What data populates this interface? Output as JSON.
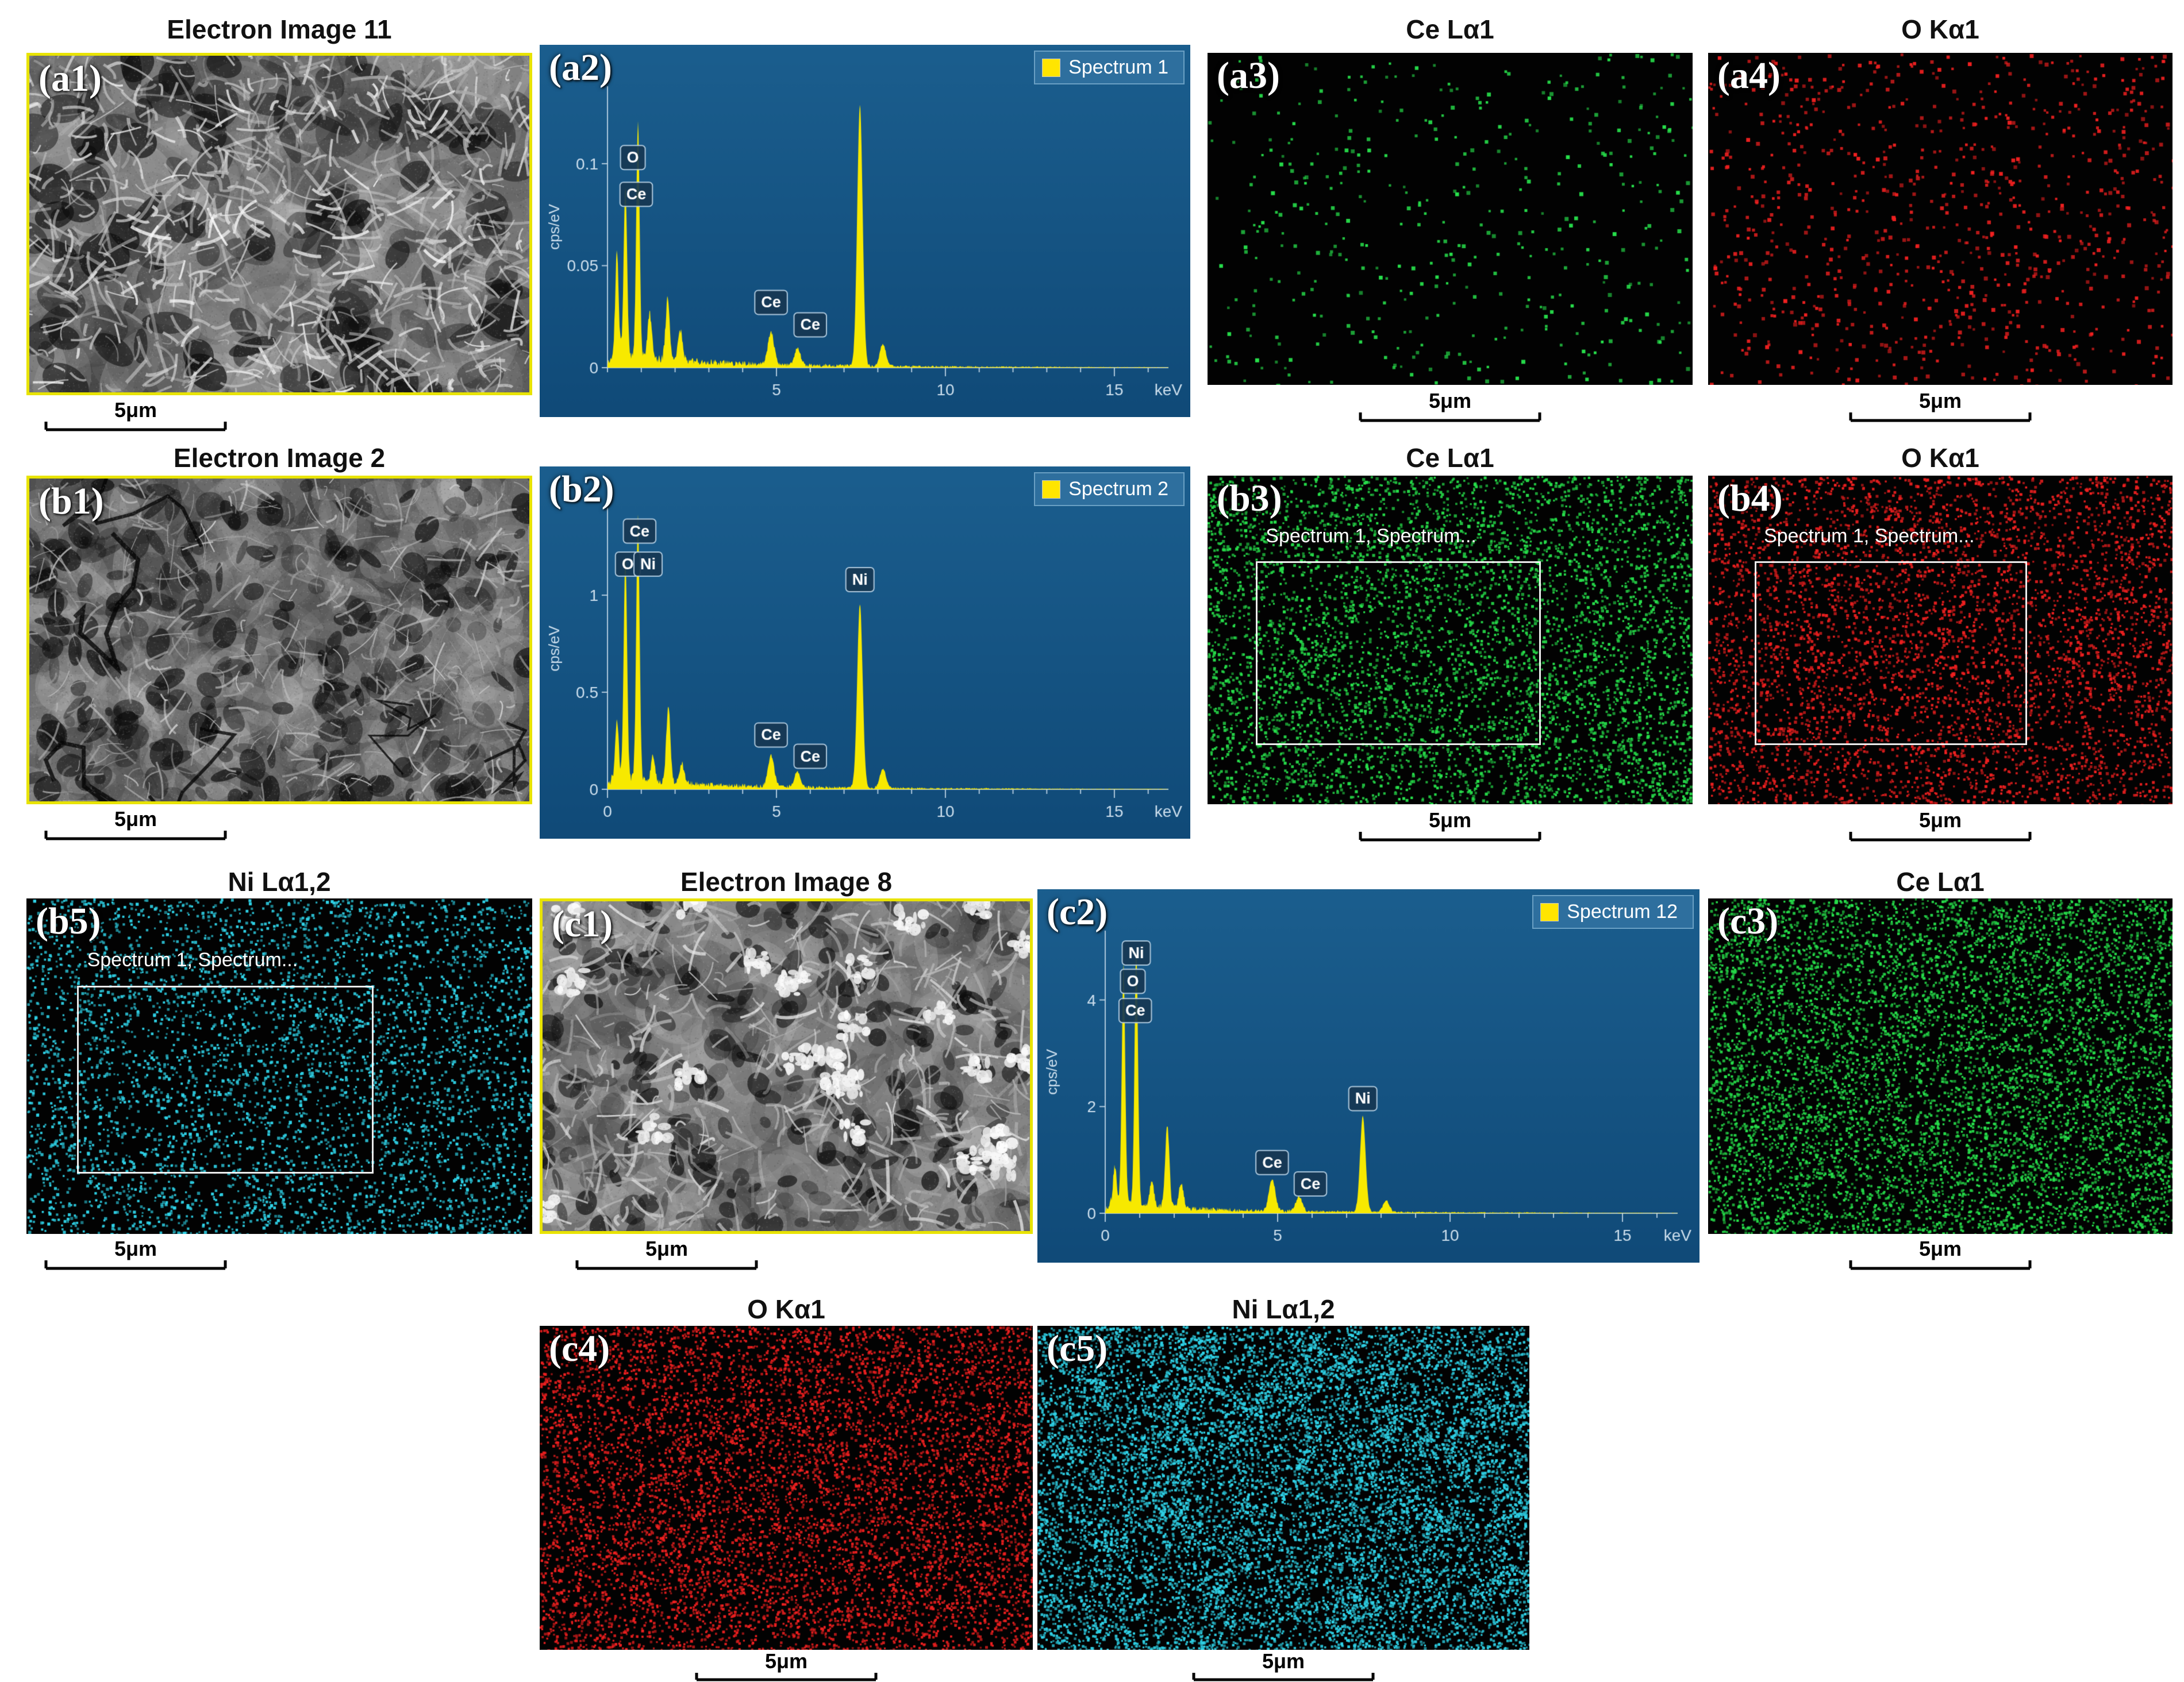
{
  "panels": {
    "a1": {
      "label": "(a1)",
      "title": "Electron Image 11",
      "scale_bar": "5μm",
      "kind": "sem"
    },
    "a2": {
      "label": "(a2)",
      "kind": "spectrum"
    },
    "a3": {
      "label": "(a3)",
      "title": "Ce Lα1",
      "scale_bar": "5μm",
      "kind": "map",
      "color": "#27e04b",
      "count": 430,
      "size": [
        4,
        7
      ]
    },
    "a4": {
      "label": "(a4)",
      "title": "O Kα1",
      "scale_bar": "5μm",
      "kind": "map",
      "color": "#ef2020",
      "count": 880,
      "size": [
        4,
        7
      ]
    },
    "b1": {
      "label": "(b1)",
      "title": "Electron Image 2",
      "scale_bar": "5μm",
      "kind": "sem"
    },
    "b2": {
      "label": "(b2)",
      "kind": "spectrum"
    },
    "b3": {
      "label": "(b3)",
      "title": "Ce Lα1",
      "scale_bar": "5μm",
      "kind": "map",
      "color": "#27e04b",
      "count": 5200,
      "size": [
        3,
        5.5
      ],
      "overlay": "Spectrum 1, Spectrum..."
    },
    "b4": {
      "label": "(b4)",
      "title": "O Kα1",
      "scale_bar": "5μm",
      "kind": "map",
      "color": "#ef2020",
      "count": 4600,
      "size": [
        3,
        5.5
      ],
      "overlay": "Spectrum 1, Spectrum..."
    },
    "b5": {
      "label": "(b5)",
      "title": "Ni Lα1,2",
      "scale_bar": "5μm",
      "kind": "map",
      "color": "#2fd3e8",
      "count": 4600,
      "size": [
        3,
        5.5
      ],
      "overlay": "Spectrum 1, Spectrum..."
    },
    "c1": {
      "label": "(c1)",
      "title": "Electron Image 8",
      "scale_bar": "5μm",
      "kind": "sem"
    },
    "c2": {
      "label": "(c2)",
      "kind": "spectrum"
    },
    "c3": {
      "label": "(c3)",
      "title": "Ce Lα1",
      "scale_bar": "5μm",
      "kind": "map",
      "color": "#27e04b",
      "count": 7600,
      "size": [
        3,
        5
      ]
    },
    "c4": {
      "label": "(c4)",
      "title": "O Kα1",
      "scale_bar": "5μm",
      "kind": "map",
      "color": "#ef2020",
      "count": 7600,
      "size": [
        3,
        5
      ]
    },
    "c5": {
      "label": "(c5)",
      "title": "Ni Lα1,2",
      "scale_bar": "5μm",
      "kind": "map",
      "color": "#2fd3e8",
      "count": 9500,
      "size": [
        3,
        5
      ],
      "clusters": 90
    }
  },
  "chart_data": [
    {
      "panel": "a2",
      "type": "area",
      "legend": "Spectrum 1",
      "series_color": "#f7e900",
      "xlabel": "keV",
      "ylabel": "cps/eV",
      "xlim": [
        0,
        16.6
      ],
      "ylim": [
        0,
        0.138
      ],
      "xticks": [
        5,
        10,
        15
      ],
      "yticks": [
        0,
        0.05,
        0.1
      ],
      "ytick_labels": [
        "0",
        "0.05",
        "0.1"
      ],
      "baseline": 0.004,
      "noise": 0.005,
      "peaks": [
        [
          0.28,
          0.05,
          0.05
        ],
        [
          0.53,
          0.085,
          0.05
        ],
        [
          0.9,
          0.115,
          0.05
        ],
        [
          1.25,
          0.022,
          0.06
        ],
        [
          1.78,
          0.03,
          0.06
        ],
        [
          2.15,
          0.015,
          0.07
        ],
        [
          4.84,
          0.016,
          0.09
        ],
        [
          5.62,
          0.008,
          0.09
        ],
        [
          7.47,
          0.128,
          0.08
        ],
        [
          8.15,
          0.011,
          0.09
        ]
      ],
      "labels": [
        {
          "t": "O",
          "x": 0.75,
          "y": 0.103
        },
        {
          "t": "Ce",
          "x": 0.85,
          "y": 0.085
        },
        {
          "t": "Ce",
          "x": 4.84,
          "y": 0.032
        },
        {
          "t": "Ce",
          "x": 6.0,
          "y": 0.021
        }
      ]
    },
    {
      "panel": "b2",
      "type": "area",
      "legend": "Spectrum 2",
      "series_color": "#f7e900",
      "xlabel": "keV",
      "ylabel": "cps/eV",
      "xlim": [
        0,
        16.6
      ],
      "ylim": [
        0,
        1.45
      ],
      "xticks": [
        0,
        5,
        10,
        15
      ],
      "yticks": [
        0,
        0.5,
        1
      ],
      "ytick_labels": [
        "0",
        "0.5",
        "1"
      ],
      "baseline": 0.04,
      "noise": 0.045,
      "peaks": [
        [
          0.28,
          0.3,
          0.05
        ],
        [
          0.53,
          1.16,
          0.05
        ],
        [
          0.9,
          1.35,
          0.05
        ],
        [
          1.35,
          0.13,
          0.06
        ],
        [
          1.8,
          0.4,
          0.06
        ],
        [
          2.2,
          0.1,
          0.07
        ],
        [
          4.84,
          0.16,
          0.09
        ],
        [
          5.62,
          0.08,
          0.09
        ],
        [
          7.47,
          0.95,
          0.08
        ],
        [
          8.15,
          0.1,
          0.09
        ]
      ],
      "labels": [
        {
          "t": "Ce",
          "x": 0.95,
          "y": 1.33
        },
        {
          "t": "O",
          "x": 0.6,
          "y": 1.16
        },
        {
          "t": "Ni",
          "x": 1.2,
          "y": 1.16
        },
        {
          "t": "Ce",
          "x": 4.84,
          "y": 0.28
        },
        {
          "t": "Ce",
          "x": 6.0,
          "y": 0.17
        },
        {
          "t": "Ni",
          "x": 7.47,
          "y": 1.08
        }
      ]
    },
    {
      "panel": "c2",
      "type": "area",
      "legend": "Spectrum 12",
      "series_color": "#f7e900",
      "xlabel": "keV",
      "ylabel": "cps/eV",
      "xlim": [
        0,
        16.6
      ],
      "ylim": [
        0,
        5.3
      ],
      "xticks": [
        0,
        5,
        10,
        15
      ],
      "yticks": [
        0,
        2,
        4
      ],
      "ytick_labels": [
        "0",
        "2",
        "4"
      ],
      "baseline": 0.13,
      "noise": 0.14,
      "peaks": [
        [
          0.28,
          0.7,
          0.05
        ],
        [
          0.53,
          4.45,
          0.05
        ],
        [
          0.9,
          4.8,
          0.05
        ],
        [
          1.35,
          0.5,
          0.06
        ],
        [
          1.8,
          1.55,
          0.06
        ],
        [
          2.2,
          0.45,
          0.07
        ],
        [
          4.84,
          0.6,
          0.09
        ],
        [
          5.62,
          0.28,
          0.09
        ],
        [
          7.47,
          1.8,
          0.08
        ],
        [
          8.15,
          0.22,
          0.09
        ]
      ],
      "labels": [
        {
          "t": "Ni",
          "x": 0.9,
          "y": 4.88
        },
        {
          "t": "O",
          "x": 0.8,
          "y": 4.35
        },
        {
          "t": "Ce",
          "x": 0.87,
          "y": 3.8
        },
        {
          "t": "Ce",
          "x": 4.84,
          "y": 0.95
        },
        {
          "t": "Ce",
          "x": 5.95,
          "y": 0.55
        },
        {
          "t": "Ni",
          "x": 7.47,
          "y": 2.15
        }
      ]
    }
  ]
}
